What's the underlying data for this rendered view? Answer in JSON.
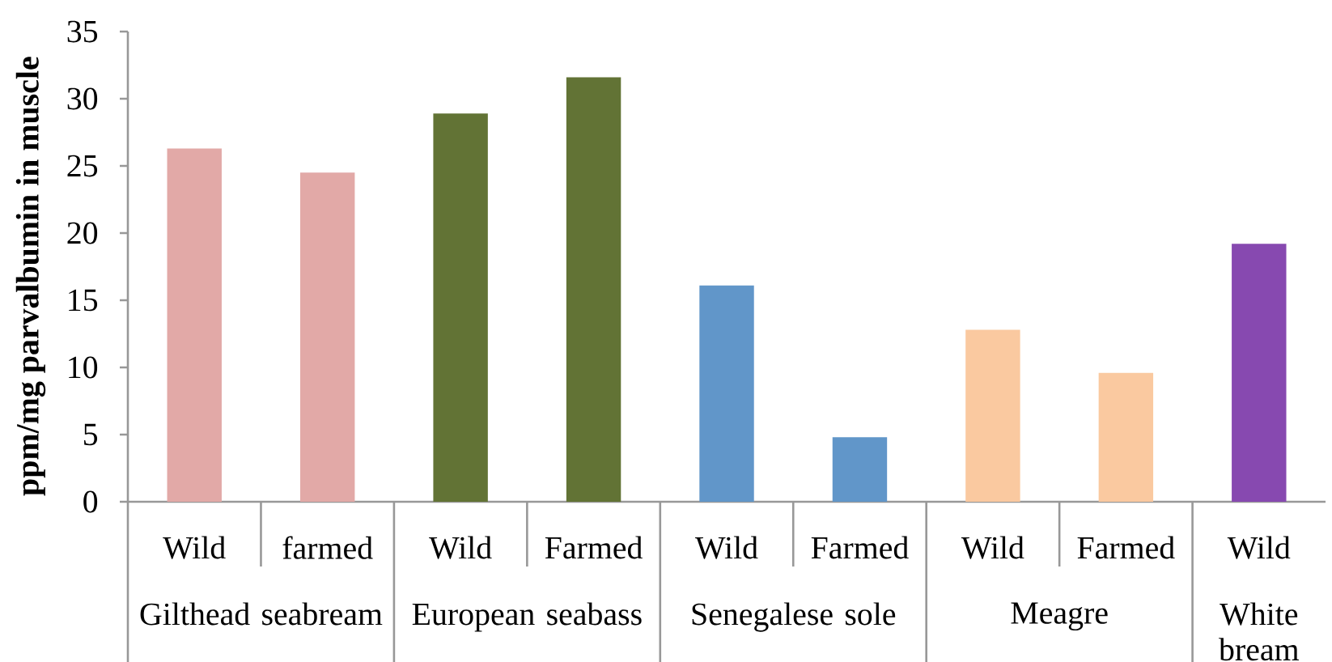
{
  "chart_data": {
    "type": "bar",
    "ylabel": "ppm/mg parvalbumin in muscle",
    "categories": [
      "Wild",
      "farmed",
      "Wild",
      "Farmed",
      "Wild",
      "Farmed",
      "Wild",
      "Farmed",
      "Wild"
    ],
    "values": [
      26.3,
      24.5,
      28.9,
      31.6,
      16.1,
      4.8,
      12.8,
      9.6,
      19.2
    ],
    "colors": [
      "#e2a9a7",
      "#e2a9a7",
      "#627335",
      "#627335",
      "#6196c9",
      "#6196c9",
      "#fac9a0",
      "#fac9a0",
      "#8749b0"
    ],
    "annotations": [
      "Gilthead seabream",
      "European seabass",
      "Senegalese sole",
      "Meagre",
      "White bream"
    ],
    "ylim": [
      0,
      35
    ],
    "yticks": [
      0,
      5,
      10,
      15,
      20,
      25,
      30,
      35
    ]
  }
}
